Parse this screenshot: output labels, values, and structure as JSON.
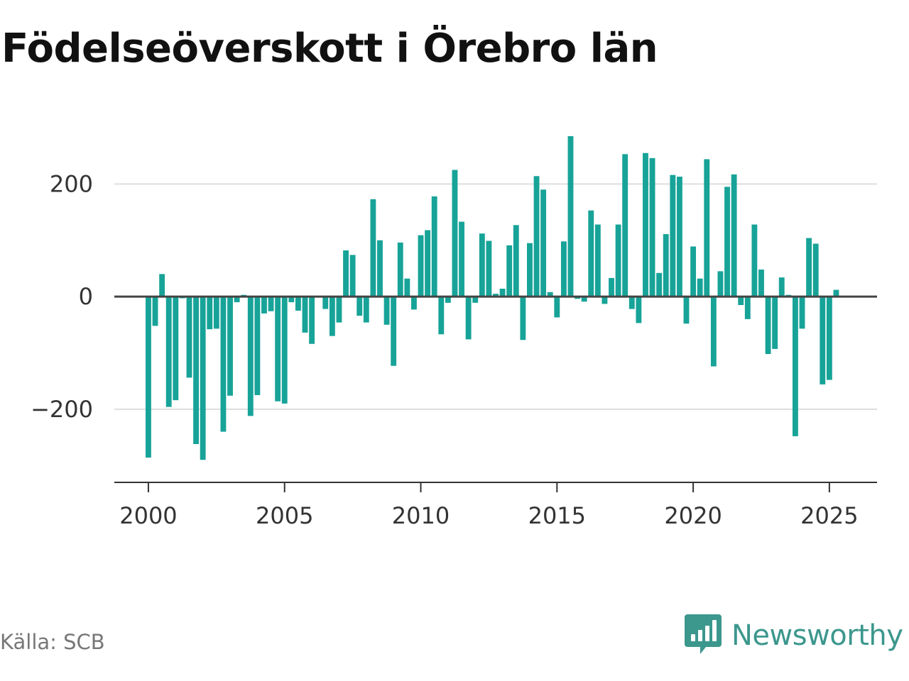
{
  "title": "Födelseöverskott i Örebro län",
  "source": "Källa: SCB",
  "brand": {
    "name": "Newsworthy",
    "icon": "newsworthy-logo-icon",
    "color": "#3c978d"
  },
  "colors": {
    "bar": "#17a398",
    "zero_line": "#444444",
    "grid": "#dddddd",
    "axis": "#333333"
  },
  "chart_data": {
    "type": "bar",
    "title": "Födelseöverskott i Örebro län",
    "xlabel": "",
    "ylabel": "",
    "x_ticks": [
      2000,
      2005,
      2010,
      2015,
      2020,
      2025
    ],
    "y_ticks": [
      -200,
      0,
      200
    ],
    "y_tick_labels": [
      "−200",
      "0",
      "200"
    ],
    "xlim": [
      1998.75,
      2026.75
    ],
    "ylim": [
      -330,
      300
    ],
    "grid": true,
    "legend": "none",
    "x": [
      2000.0,
      2000.25,
      2000.5,
      2000.75,
      2001.0,
      2001.25,
      2001.5,
      2001.75,
      2002.0,
      2002.25,
      2002.5,
      2002.75,
      2003.0,
      2003.25,
      2003.5,
      2003.75,
      2004.0,
      2004.25,
      2004.5,
      2004.75,
      2005.0,
      2005.25,
      2005.5,
      2005.75,
      2006.0,
      2006.25,
      2006.5,
      2006.75,
      2007.0,
      2007.25,
      2007.5,
      2007.75,
      2008.0,
      2008.25,
      2008.5,
      2008.75,
      2009.0,
      2009.25,
      2009.5,
      2009.75,
      2010.0,
      2010.25,
      2010.5,
      2010.75,
      2011.0,
      2011.25,
      2011.5,
      2011.75,
      2012.0,
      2012.25,
      2012.5,
      2012.75,
      2013.0,
      2013.25,
      2013.5,
      2013.75,
      2014.0,
      2014.25,
      2014.5,
      2014.75,
      2015.0,
      2015.25,
      2015.5,
      2015.75,
      2016.0,
      2016.25,
      2016.5,
      2016.75,
      2017.0,
      2017.25,
      2017.5,
      2017.75,
      2018.0,
      2018.25,
      2018.5,
      2018.75,
      2019.0,
      2019.25,
      2019.5,
      2019.75,
      2020.0,
      2020.25,
      2020.5,
      2020.75,
      2021.0,
      2021.25,
      2021.5,
      2021.75,
      2022.0,
      2022.25,
      2022.5,
      2022.75,
      2023.0,
      2023.25,
      2023.5,
      2023.75,
      2024.0,
      2024.25,
      2024.5,
      2024.75,
      2025.0,
      2025.25
    ],
    "values": [
      -286,
      -52,
      40,
      -196,
      -184,
      -3,
      -144,
      -262,
      -290,
      -58,
      -57,
      -240,
      -176,
      -10,
      3,
      -212,
      -175,
      -30,
      -26,
      -186,
      -190,
      -10,
      -25,
      -64,
      -84,
      0,
      -22,
      -70,
      -46,
      82,
      74,
      -34,
      -46,
      173,
      100,
      -50,
      -123,
      96,
      32,
      -23,
      109,
      118,
      178,
      -67,
      -11,
      225,
      133,
      -76,
      -11,
      112,
      99,
      5,
      14,
      91,
      127,
      -77,
      95,
      214,
      190,
      8,
      -37,
      98,
      285,
      -4,
      -9,
      153,
      128,
      -13,
      33,
      128,
      253,
      -22,
      -47,
      255,
      246,
      42,
      111,
      216,
      213,
      -48,
      89,
      32,
      244,
      -124,
      45,
      195,
      217,
      -15,
      -40,
      128,
      48,
      -102,
      -93,
      34,
      3,
      -248,
      -57,
      104,
      94,
      -156,
      -148,
      12
    ]
  }
}
